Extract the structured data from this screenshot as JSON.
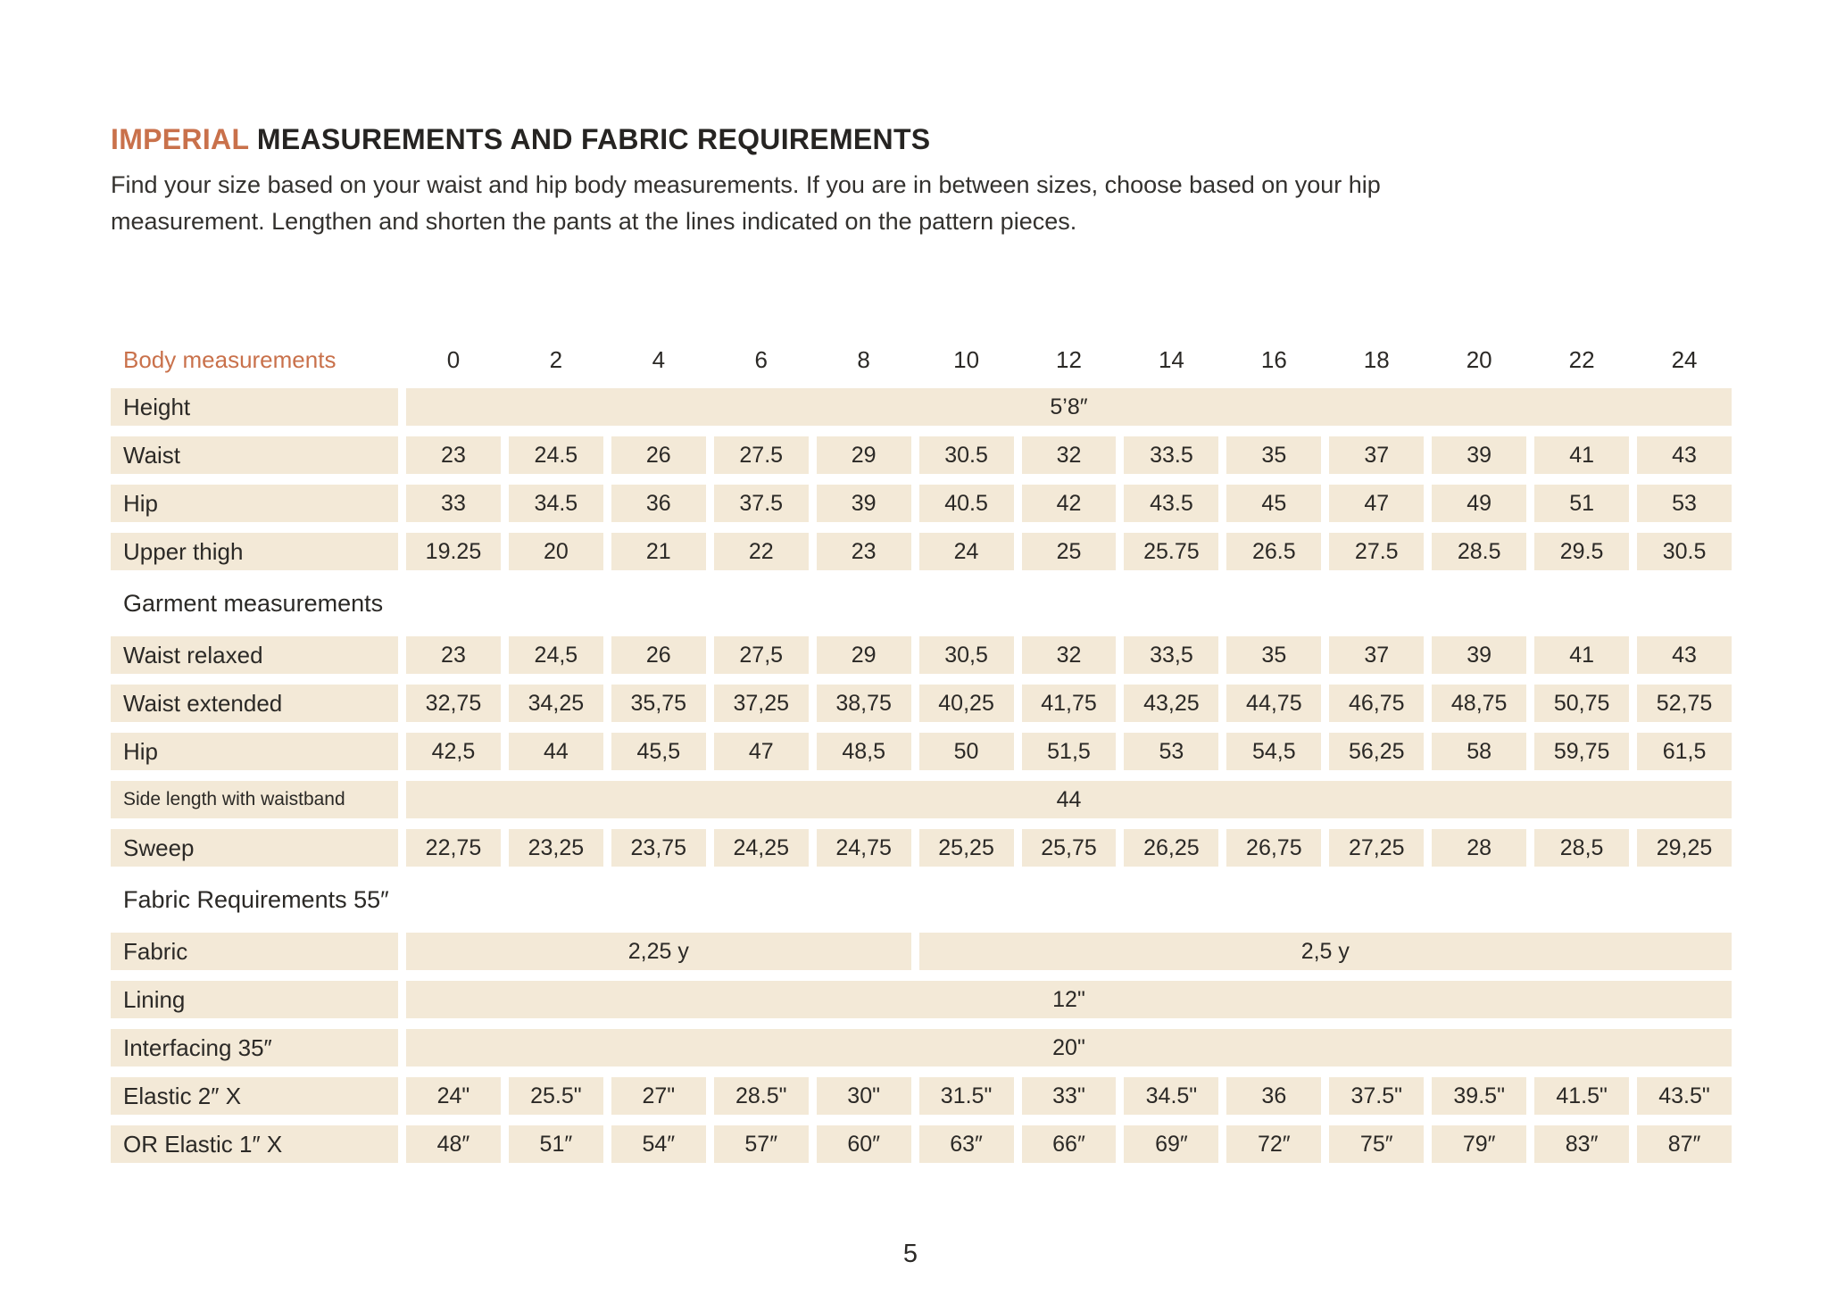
{
  "page": {
    "title_accent": "IMPERIAL",
    "title_rest": " MEASUREMENTS AND FABRIC REQUIREMENTS",
    "intro_line1": "Find your size based on your waist and hip body measurements. If you are in between sizes, choose based on your hip",
    "intro_line2": "measurement. Lengthen and shorten the pants at the lines indicated on the pattern pieces.",
    "page_number": "5"
  },
  "colors": {
    "accent_orange": "#c9714b",
    "cell_beige": "#f3e9d7",
    "text_dark": "#2b2926"
  },
  "table": {
    "header_label": "Body measurements",
    "sizes": [
      "0",
      "2",
      "4",
      "6",
      "8",
      "10",
      "12",
      "14",
      "16",
      "18",
      "20",
      "22",
      "24"
    ],
    "rows": [
      {
        "type": "span",
        "label": "Height",
        "value": "5’8″"
      },
      {
        "type": "data",
        "label": "Waist",
        "values": [
          "23",
          "24.5",
          "26",
          "27.5",
          "29",
          "30.5",
          "32",
          "33.5",
          "35",
          "37",
          "39",
          "41",
          "43"
        ]
      },
      {
        "type": "data",
        "label": "Hip",
        "values": [
          "33",
          "34.5",
          "36",
          "37.5",
          "39",
          "40.5",
          "42",
          "43.5",
          "45",
          "47",
          "49",
          "51",
          "53"
        ]
      },
      {
        "type": "data",
        "label": "Upper thigh",
        "values": [
          "19.25",
          "20",
          "21",
          "22",
          "23",
          "24",
          "25",
          "25.75",
          "26.5",
          "27.5",
          "28.5",
          "29.5",
          "30.5"
        ]
      },
      {
        "type": "section",
        "label": "Garment measurements"
      },
      {
        "type": "data",
        "label": "Waist relaxed",
        "values": [
          "23",
          "24,5",
          "26",
          "27,5",
          "29",
          "30,5",
          "32",
          "33,5",
          "35",
          "37",
          "39",
          "41",
          "43"
        ]
      },
      {
        "type": "data",
        "label": "Waist extended",
        "values": [
          "32,75",
          "34,25",
          "35,75",
          "37,25",
          "38,75",
          "40,25",
          "41,75",
          "43,25",
          "44,75",
          "46,75",
          "48,75",
          "50,75",
          "52,75"
        ]
      },
      {
        "type": "data",
        "label": "Hip",
        "values": [
          "42,5",
          "44",
          "45,5",
          "47",
          "48,5",
          "50",
          "51,5",
          "53",
          "54,5",
          "56,25",
          "58",
          "59,75",
          "61,5"
        ]
      },
      {
        "type": "span",
        "label": "Side length with waistband",
        "small_label": true,
        "value": "44"
      },
      {
        "type": "data",
        "label": "Sweep",
        "values": [
          "22,75",
          "23,25",
          "23,75",
          "24,25",
          "24,75",
          "25,25",
          "25,75",
          "26,25",
          "26,75",
          "27,25",
          "28",
          "28,5",
          "29,25"
        ]
      },
      {
        "type": "section",
        "label": "Fabric Requirements 55″"
      },
      {
        "type": "multispan",
        "label": "Fabric",
        "spans": [
          {
            "cols": 5,
            "value": "2,25 y"
          },
          {
            "cols": 8,
            "value": "2,5 y"
          }
        ]
      },
      {
        "type": "span",
        "label": "Lining",
        "value": "12\""
      },
      {
        "type": "span",
        "label": "Interfacing 35″",
        "value": "20\""
      },
      {
        "type": "data",
        "label": "Elastic 2″ X",
        "values": [
          "24\"",
          "25.5\"",
          "27\"",
          "28.5\"",
          "30\"",
          "31.5\"",
          "33\"",
          "34.5\"",
          "36",
          "37.5\"",
          "39.5\"",
          "41.5\"",
          "43.5\""
        ]
      },
      {
        "type": "data",
        "label": "OR Elastic 1″ X",
        "values": [
          "48″",
          "51″",
          "54″",
          "57″",
          "60″",
          "63″",
          "66″",
          "69″",
          "72″",
          "75″",
          "79″",
          "83″",
          "87″"
        ]
      }
    ]
  }
}
